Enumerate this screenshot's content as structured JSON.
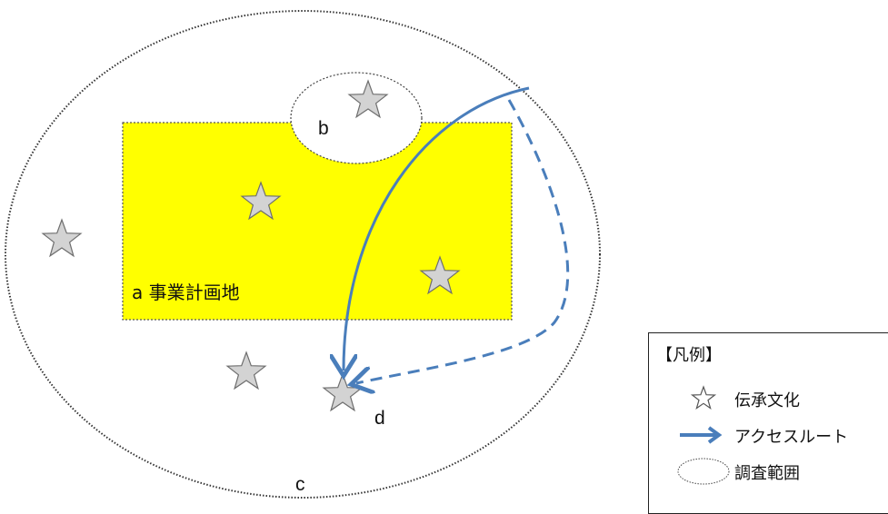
{
  "labels": {
    "a": "a 事業計画地",
    "b": "b",
    "c": "c",
    "d": "d"
  },
  "legend": {
    "title": "【凡例】",
    "items": [
      {
        "icon": "star-icon",
        "label": "伝承文化"
      },
      {
        "icon": "arrow-icon",
        "label": "アクセスルート"
      },
      {
        "icon": "ellipse-icon",
        "label": "調査範囲"
      }
    ]
  },
  "colors": {
    "project_area": "#ffff00",
    "star_fill": "#d3d3d3",
    "star_stroke": "#6e6e6e",
    "route": "#4a7ebb",
    "outline": "#333333"
  }
}
